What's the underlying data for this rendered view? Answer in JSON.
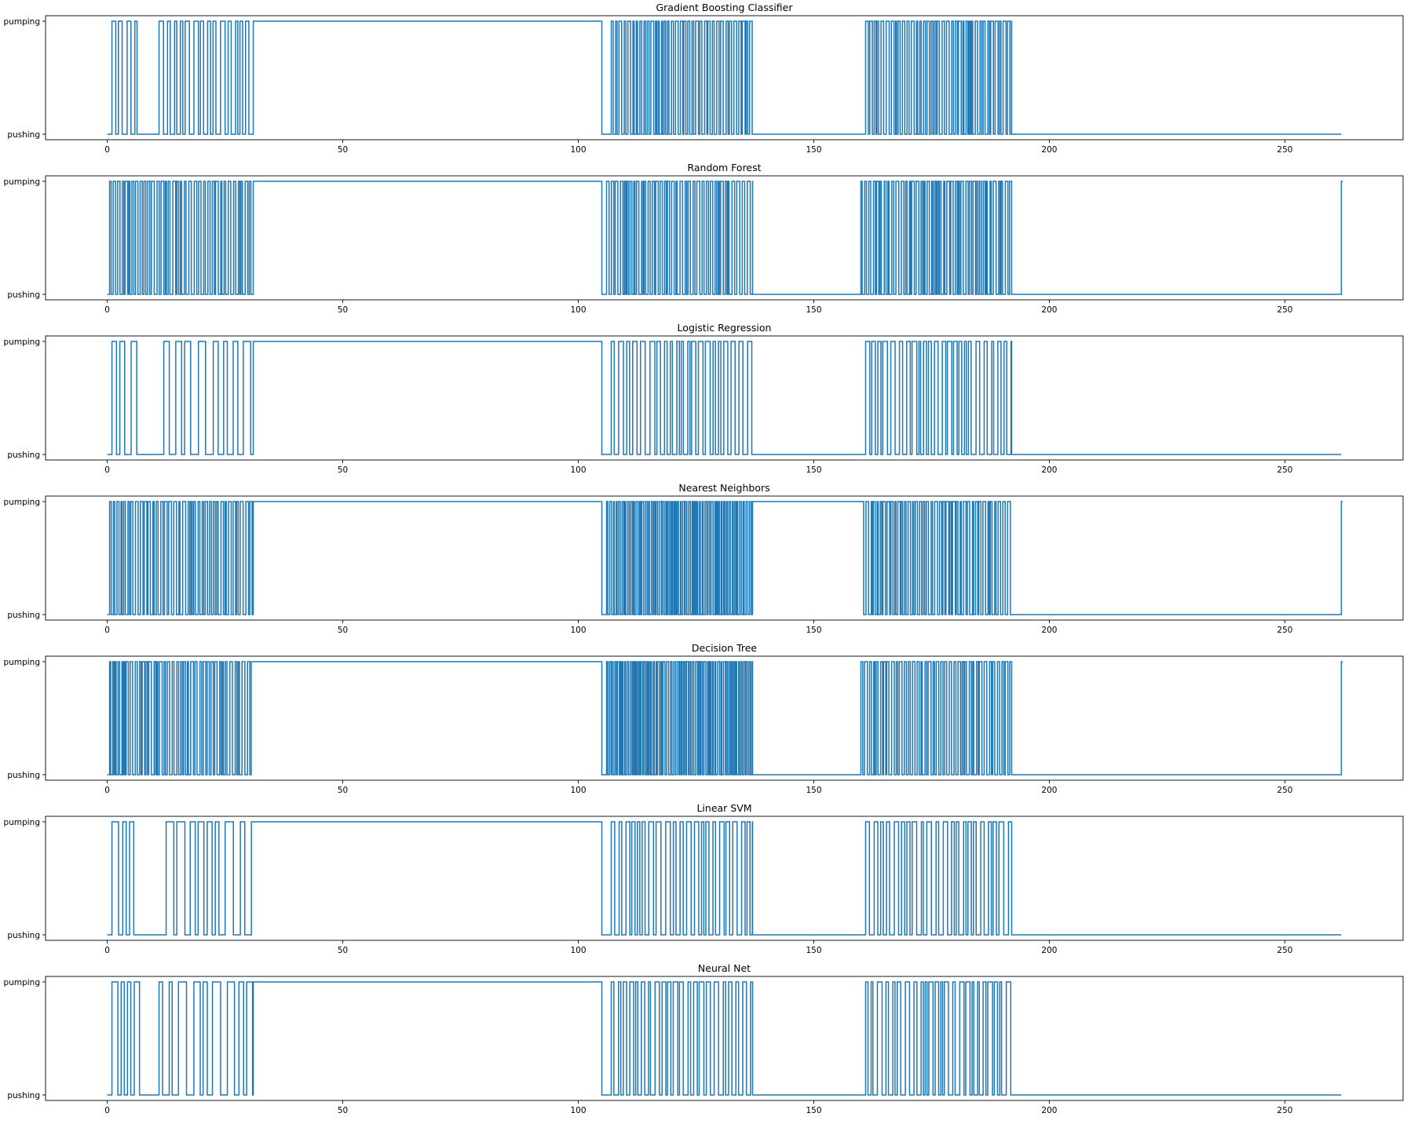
{
  "figure": {
    "line_color": "#1f77b4",
    "y_categories": [
      "pushing",
      "pumping"
    ],
    "x_ticks": [
      0,
      50,
      100,
      150,
      200,
      250
    ],
    "xlim": [
      -13.1,
      275.1
    ],
    "x_range": [
      0,
      262
    ]
  },
  "chart_data": [
    {
      "type": "line",
      "title": "Gradient Boosting Classifier",
      "y_tick_labels": [
        "pumping",
        "pushing"
      ],
      "x_tick_labels": [
        "0",
        "50",
        "100",
        "150",
        "200",
        "250"
      ],
      "segments": [
        {
          "x": [
            0,
            1
          ],
          "y": "pushing"
        },
        {
          "x": [
            1,
            31
          ],
          "y": "alternating",
          "density": "medium",
          "gaps": [
            [
              8,
              11
            ]
          ]
        },
        {
          "x": [
            31,
            105
          ],
          "y": "pumping"
        },
        {
          "x": [
            105,
            107
          ],
          "y": "pushing"
        },
        {
          "x": [
            107,
            137
          ],
          "y": "alternating",
          "density": "high"
        },
        {
          "x": [
            137,
            161
          ],
          "y": "pushing"
        },
        {
          "x": [
            161,
            192
          ],
          "y": "alternating",
          "density": "high"
        },
        {
          "x": [
            192,
            262
          ],
          "y": "pushing"
        }
      ]
    },
    {
      "type": "line",
      "title": "Random Forest",
      "y_tick_labels": [
        "pumping",
        "pushing"
      ],
      "x_tick_labels": [
        "0",
        "50",
        "100",
        "150",
        "200",
        "250"
      ],
      "segments": [
        {
          "x": [
            0,
            0.5
          ],
          "y": "pushing"
        },
        {
          "x": [
            0.5,
            31
          ],
          "y": "alternating",
          "density": "high"
        },
        {
          "x": [
            31,
            105
          ],
          "y": "pumping"
        },
        {
          "x": [
            105,
            106
          ],
          "y": "pushing"
        },
        {
          "x": [
            106,
            137
          ],
          "y": "alternating",
          "density": "high"
        },
        {
          "x": [
            137,
            160
          ],
          "y": "pushing"
        },
        {
          "x": [
            160,
            192
          ],
          "y": "alternating",
          "density": "high"
        },
        {
          "x": [
            192,
            262
          ],
          "y": "pushing"
        },
        {
          "x": [
            262,
            262.3
          ],
          "y": "pumping"
        }
      ]
    },
    {
      "type": "line",
      "title": "Logistic Regression",
      "y_tick_labels": [
        "pumping",
        "pushing"
      ],
      "x_tick_labels": [
        "0",
        "50",
        "100",
        "150",
        "200",
        "250"
      ],
      "segments": [
        {
          "x": [
            0,
            1
          ],
          "y": "pushing"
        },
        {
          "x": [
            1,
            31
          ],
          "y": "alternating",
          "density": "low",
          "gaps": [
            [
              7,
              12
            ]
          ]
        },
        {
          "x": [
            31,
            105
          ],
          "y": "pumping"
        },
        {
          "x": [
            105,
            107
          ],
          "y": "pushing"
        },
        {
          "x": [
            107,
            137
          ],
          "y": "alternating",
          "density": "medium"
        },
        {
          "x": [
            137,
            161
          ],
          "y": "pushing"
        },
        {
          "x": [
            161,
            192
          ],
          "y": "alternating",
          "density": "medium"
        },
        {
          "x": [
            192,
            262
          ],
          "y": "pushing"
        }
      ]
    },
    {
      "type": "line",
      "title": "Nearest Neighbors",
      "y_tick_labels": [
        "pumping",
        "pushing"
      ],
      "x_tick_labels": [
        "0",
        "50",
        "100",
        "150",
        "200",
        "250"
      ],
      "segments": [
        {
          "x": [
            0,
            0.5
          ],
          "y": "pushing"
        },
        {
          "x": [
            0.5,
            31
          ],
          "y": "alternating",
          "density": "high"
        },
        {
          "x": [
            31,
            105
          ],
          "y": "pumping"
        },
        {
          "x": [
            105,
            106
          ],
          "y": "pushing"
        },
        {
          "x": [
            106,
            137
          ],
          "y": "alternating",
          "density": "very-high"
        },
        {
          "x": [
            137,
            160
          ],
          "y": "pumping"
        },
        {
          "x": [
            160,
            192
          ],
          "y": "alternating",
          "density": "high"
        },
        {
          "x": [
            192,
            262
          ],
          "y": "pushing"
        },
        {
          "x": [
            262,
            262.3
          ],
          "y": "pumping"
        }
      ]
    },
    {
      "type": "line",
      "title": "Decision Tree",
      "y_tick_labels": [
        "pumping",
        "pushing"
      ],
      "x_tick_labels": [
        "0",
        "50",
        "100",
        "150",
        "200",
        "250"
      ],
      "segments": [
        {
          "x": [
            0,
            0.5
          ],
          "y": "pushing"
        },
        {
          "x": [
            0.5,
            31
          ],
          "y": "alternating",
          "density": "high"
        },
        {
          "x": [
            31,
            105
          ],
          "y": "pumping"
        },
        {
          "x": [
            105,
            106
          ],
          "y": "pushing"
        },
        {
          "x": [
            106,
            137
          ],
          "y": "alternating",
          "density": "very-high"
        },
        {
          "x": [
            137,
            160
          ],
          "y": "pushing"
        },
        {
          "x": [
            160,
            192
          ],
          "y": "alternating",
          "density": "high"
        },
        {
          "x": [
            192,
            262
          ],
          "y": "pushing"
        },
        {
          "x": [
            262,
            262.3
          ],
          "y": "pumping"
        }
      ]
    },
    {
      "type": "line",
      "title": "Linear SVM",
      "y_tick_labels": [
        "pumping",
        "pushing"
      ],
      "x_tick_labels": [
        "0",
        "50",
        "100",
        "150",
        "200",
        "250"
      ],
      "segments": [
        {
          "x": [
            0,
            1
          ],
          "y": "pushing"
        },
        {
          "x": [
            1,
            31
          ],
          "y": "alternating",
          "density": "low",
          "gaps": [
            [
              8,
              12.5
            ]
          ]
        },
        {
          "x": [
            31,
            105
          ],
          "y": "pumping"
        },
        {
          "x": [
            105,
            107
          ],
          "y": "pushing"
        },
        {
          "x": [
            107,
            137
          ],
          "y": "alternating",
          "density": "medium"
        },
        {
          "x": [
            137,
            161
          ],
          "y": "pushing"
        },
        {
          "x": [
            161,
            192
          ],
          "y": "alternating",
          "density": "medium"
        },
        {
          "x": [
            192,
            262
          ],
          "y": "pushing"
        }
      ]
    },
    {
      "type": "line",
      "title": "Neural Net",
      "y_tick_labels": [
        "pumping",
        "pushing"
      ],
      "x_tick_labels": [
        "0",
        "50",
        "100",
        "150",
        "200",
        "250"
      ],
      "segments": [
        {
          "x": [
            0,
            1
          ],
          "y": "pushing"
        },
        {
          "x": [
            1,
            31
          ],
          "y": "alternating",
          "density": "low",
          "gaps": [
            [
              8,
              11
            ]
          ]
        },
        {
          "x": [
            31,
            105
          ],
          "y": "pumping"
        },
        {
          "x": [
            105,
            107
          ],
          "y": "pushing"
        },
        {
          "x": [
            107,
            137
          ],
          "y": "alternating",
          "density": "medium"
        },
        {
          "x": [
            137,
            161
          ],
          "y": "pushing"
        },
        {
          "x": [
            161,
            192
          ],
          "y": "alternating",
          "density": "medium"
        },
        {
          "x": [
            192,
            262
          ],
          "y": "pushing"
        }
      ]
    }
  ]
}
